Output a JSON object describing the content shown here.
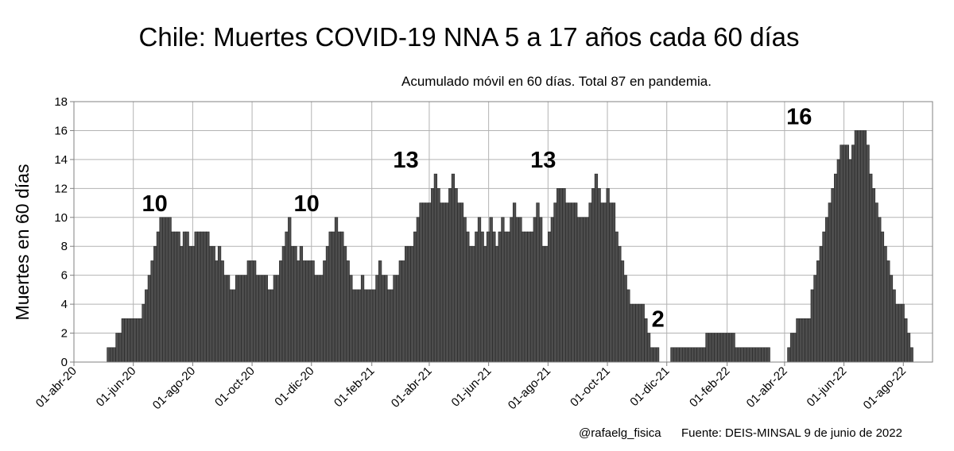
{
  "chart_data": {
    "type": "bar",
    "title": "Chile: Muertes COVID-19 NNA 5 a 17 años cada 60 días",
    "subtitle": "Acumulado móvil en 60 días. Total 87 en pandemia.",
    "ylabel": "Muertes en 60 días",
    "xlabel": "",
    "ylim": [
      0,
      18
    ],
    "ytick_step": 2,
    "x_start_label": "01-abr-20",
    "x_end_label": "31-ago-22",
    "tick_labels": [
      "01-abr-20",
      "01-jun-20",
      "01-ago-20",
      "01-oct-20",
      "01-dic-20",
      "01-feb-21",
      "01-abr-21",
      "01-jun-21",
      "01-ago-21",
      "01-oct-21",
      "01-dic-21",
      "01-feb-22",
      "01-abr-22",
      "01-jun-22",
      "01-ago-22"
    ],
    "series": [
      {
        "name": "Muertes en 60 días (acumulado móvil)",
        "start_date": "2020-05-05",
        "step_days": 3,
        "values": [
          1,
          1,
          1,
          2,
          2,
          3,
          3,
          3,
          3,
          3,
          3,
          3,
          4,
          5,
          6,
          7,
          8,
          9,
          10,
          10,
          10,
          10,
          9,
          9,
          9,
          8,
          9,
          9,
          8,
          8,
          9,
          9,
          9,
          9,
          9,
          8,
          8,
          7,
          8,
          7,
          6,
          6,
          5,
          5,
          6,
          6,
          6,
          6,
          7,
          7,
          7,
          6,
          6,
          6,
          6,
          5,
          5,
          6,
          6,
          7,
          8,
          9,
          10,
          8,
          8,
          7,
          8,
          7,
          7,
          7,
          7,
          6,
          6,
          6,
          7,
          8,
          9,
          9,
          10,
          9,
          9,
          8,
          7,
          6,
          5,
          5,
          5,
          6,
          5,
          5,
          5,
          5,
          6,
          7,
          6,
          6,
          5,
          5,
          6,
          6,
          7,
          7,
          8,
          8,
          8,
          9,
          10,
          11,
          11,
          11,
          11,
          12,
          13,
          12,
          11,
          11,
          11,
          12,
          13,
          12,
          11,
          11,
          10,
          9,
          8,
          8,
          9,
          10,
          9,
          8,
          9,
          10,
          9,
          8,
          9,
          10,
          9,
          9,
          10,
          11,
          10,
          10,
          9,
          9,
          9,
          9,
          10,
          11,
          10,
          8,
          8,
          9,
          10,
          11,
          12,
          12,
          12,
          11,
          11,
          11,
          11,
          10,
          10,
          10,
          10,
          11,
          12,
          13,
          12,
          11,
          11,
          12,
          11,
          11,
          9,
          8,
          7,
          6,
          5,
          4,
          4,
          4,
          4,
          4,
          3,
          2,
          1,
          1,
          1,
          0,
          0,
          0,
          0,
          1,
          1,
          1,
          1,
          1,
          1,
          1,
          1,
          1,
          1,
          1,
          1,
          2,
          2,
          2,
          2,
          2,
          2,
          2,
          2,
          2,
          2,
          1,
          1,
          1,
          1,
          1,
          1,
          1,
          1,
          1,
          1,
          1,
          1,
          0,
          0,
          0,
          0,
          0,
          0,
          1,
          2,
          2,
          3,
          3,
          3,
          3,
          3,
          5,
          6,
          7,
          8,
          9,
          10,
          11,
          12,
          13,
          14,
          15,
          15,
          15,
          14,
          15,
          16,
          16,
          16,
          16,
          15,
          13,
          12,
          11,
          10,
          9,
          8,
          7,
          6,
          5,
          4,
          4,
          4,
          3,
          2,
          1
        ]
      }
    ],
    "peak_labels": [
      {
        "date": "2020-06-23",
        "value": 10,
        "text": "10"
      },
      {
        "date": "2020-11-26",
        "value": 10,
        "text": "10"
      },
      {
        "date": "2021-03-08",
        "value": 13,
        "text": "13"
      },
      {
        "date": "2021-07-27",
        "value": 13,
        "text": "13"
      },
      {
        "date": "2021-11-22",
        "value": 2,
        "text": "2"
      },
      {
        "date": "2022-04-16",
        "value": 16,
        "text": "16"
      }
    ]
  },
  "footer": {
    "credit": "@rafaelg_fisica",
    "source": "Fuente: DEIS-MINSAL  9 de junio de 2022"
  },
  "colors": {
    "bar_fill": "#4d4d4d",
    "bar_stroke": "#262626",
    "grid": "#b3b3b3",
    "axis": "#808080"
  }
}
